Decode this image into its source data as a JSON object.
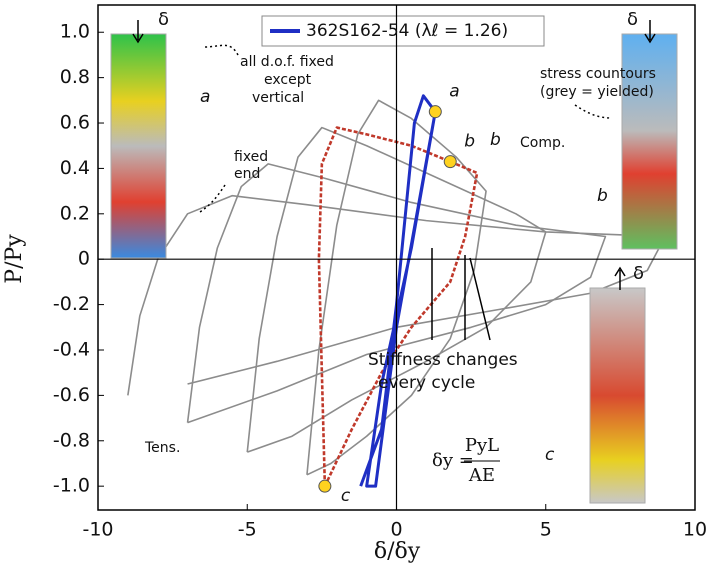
{
  "chart_data": {
    "type": "line",
    "xlabel": "δ/δy",
    "ylabel": "P/Py",
    "xlim": [
      -10,
      10
    ],
    "ylim": [
      -1.105,
      1.12
    ],
    "xticks": [
      -10,
      -5,
      0,
      5,
      10
    ],
    "yticks": [
      {
        "value": 1.0,
        "label": "1.0"
      },
      0.8,
      0.6,
      0.4,
      0.2,
      0,
      -0.2,
      -0.4,
      -0.6,
      -0.8,
      {
        "value": -1.0,
        "label": "-1.0"
      }
    ],
    "series": [
      {
        "color": "#8c8c8c",
        "style": "solid",
        "x": [
          -3.0,
          -2.6,
          -2.0,
          -1.3,
          -0.6,
          0.5,
          2.0,
          3.0,
          2.6,
          1.8,
          0.5,
          -1.0,
          -2.2,
          -3.0
        ],
        "values": [
          -0.95,
          -0.4,
          0.15,
          0.55,
          0.7,
          0.62,
          0.45,
          0.3,
          -0.05,
          -0.35,
          -0.6,
          -0.78,
          -0.9,
          -0.95
        ]
      },
      {
        "color": "#8c8c8c",
        "style": "solid",
        "x": [
          -5.0,
          -4.6,
          -4.0,
          -3.3,
          -2.5,
          -1.0,
          1.5,
          4.0,
          5.0,
          4.5,
          3.0,
          1.0,
          -1.5,
          -3.5,
          -5.0
        ],
        "values": [
          -0.85,
          -0.35,
          0.1,
          0.45,
          0.58,
          0.5,
          0.35,
          0.2,
          0.12,
          -0.1,
          -0.3,
          -0.45,
          -0.62,
          -0.78,
          -0.85
        ]
      },
      {
        "color": "#8c8c8c",
        "style": "solid",
        "x": [
          -7.0,
          -6.6,
          -6.0,
          -5.2,
          -4.3,
          -2.5,
          0.5,
          4.0,
          7.0,
          6.5,
          5.0,
          2.5,
          -1.0,
          -4.0,
          -7.0
        ],
        "values": [
          -0.72,
          -0.3,
          0.05,
          0.32,
          0.42,
          0.36,
          0.25,
          0.15,
          0.1,
          -0.08,
          -0.2,
          -0.3,
          -0.42,
          -0.58,
          -0.72
        ]
      },
      {
        "color": "#8c8c8c",
        "style": "solid",
        "x": [
          -9.0,
          -8.6,
          -8.0,
          -7.0,
          -5.5,
          -3.0,
          1.0,
          5.0,
          9.0,
          8.4,
          6.5,
          3.5,
          0.0,
          -4.0,
          -7.0
        ],
        "values": [
          -0.6,
          -0.25,
          0.0,
          0.2,
          0.28,
          0.24,
          0.17,
          0.12,
          0.1,
          -0.05,
          -0.15,
          -0.22,
          -0.3,
          -0.45,
          -0.55
        ]
      },
      {
        "color": "#c0392b",
        "style": "dashed",
        "x": [
          -2.4,
          -1.5,
          -0.5,
          0.5,
          1.8,
          2.3,
          2.7,
          1.8,
          0.5,
          -1.0,
          -2.0,
          -2.5,
          -2.6,
          -2.5,
          -2.4
        ],
        "values": [
          -1.0,
          -0.75,
          -0.5,
          -0.3,
          -0.1,
          0.1,
          0.38,
          0.43,
          0.5,
          0.55,
          0.58,
          0.42,
          0.0,
          -0.5,
          -1.0
        ]
      },
      {
        "name": "362S162-54 (λℓ = 1.26)",
        "color": "#1f2fc4",
        "style": "solid",
        "x": [
          -1.2,
          -0.5,
          0.0,
          0.6,
          0.9,
          1.3,
          0.5,
          -0.5,
          -1.0,
          -0.7,
          0.0,
          1.3
        ],
        "values": [
          -1.0,
          -0.75,
          -0.2,
          0.6,
          0.72,
          0.65,
          0.05,
          -0.55,
          -1.0,
          -1.0,
          -0.3,
          0.65
        ]
      }
    ],
    "points": [
      {
        "label": "a",
        "x": 1.3,
        "y": 0.65
      },
      {
        "label": "b",
        "x": 1.8,
        "y": 0.43
      },
      {
        "label": "c",
        "x": -2.4,
        "y": -1.0
      }
    ],
    "point_color": "#ffd21f",
    "annotations": [
      "a",
      "b",
      "b",
      "c",
      "all d.o.f. fixed",
      "except",
      "vertical",
      "fixed",
      "end",
      "stress countours",
      "(grey = yielded)",
      "Comp.",
      "Tens.",
      "Stiffness changes",
      "every cycle",
      "δ",
      "δ",
      "δ",
      "δy =",
      "PyL",
      "AE"
    ]
  }
}
